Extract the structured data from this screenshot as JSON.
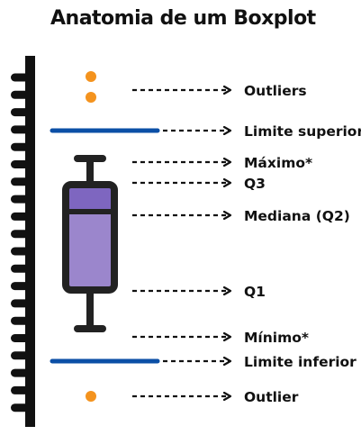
{
  "title": "Anatomia de um Boxplot",
  "colors": {
    "outlier": "#F4931E",
    "limit_line": "#0B4FA6",
    "box_fill": "#9B86CC",
    "box_upper_fill": "#7E66C0",
    "outline": "#222222",
    "arrow": "#111111"
  },
  "labels": {
    "outliers": "Outliers",
    "upper_limit": "Limite superior",
    "maximum": "Máximo*",
    "q3": "Q3",
    "median": "Mediana (Q2)",
    "q1": "Q1",
    "minimum": "Mínimo*",
    "lower_limit": "Limite inferior",
    "outlier": "Outlier"
  }
}
